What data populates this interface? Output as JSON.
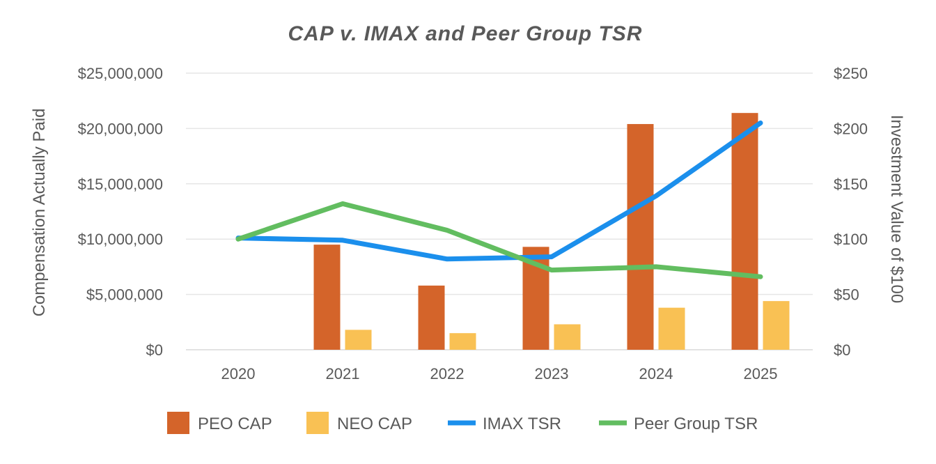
{
  "chart_data": {
    "type": "bar",
    "title": "CAP v. IMAX and Peer Group TSR",
    "xlabel": "",
    "ylabel": "Compensation Actually Paid",
    "y2label": "Investment Value of $100",
    "categories": [
      "2020",
      "2021",
      "2022",
      "2023",
      "2024",
      "2025"
    ],
    "ylim": [
      0,
      25000000
    ],
    "y2lim": [
      0,
      250
    ],
    "y_ticks": [
      {
        "value": 0,
        "label": "$0"
      },
      {
        "value": 5000000,
        "label": "$5,000,000"
      },
      {
        "value": 10000000,
        "label": "$10,000,000"
      },
      {
        "value": 15000000,
        "label": "$15,000,000"
      },
      {
        "value": 20000000,
        "label": "$20,000,000"
      },
      {
        "value": 25000000,
        "label": "$25,000,000"
      }
    ],
    "y2_ticks": [
      {
        "value": 0,
        "label": "$0"
      },
      {
        "value": 50,
        "label": "$50"
      },
      {
        "value": 100,
        "label": "$100"
      },
      {
        "value": 150,
        "label": "$150"
      },
      {
        "value": 200,
        "label": "$200"
      },
      {
        "value": 250,
        "label": "$250"
      }
    ],
    "grid": true,
    "legend_position": "bottom",
    "bar_series": [
      {
        "name": "PEO CAP",
        "color": "#D4642A",
        "values": [
          null,
          9500000,
          5800000,
          9300000,
          20400000,
          21400000
        ]
      },
      {
        "name": "NEO CAP",
        "color": "#F9C154",
        "values": [
          null,
          1800000,
          1500000,
          2300000,
          3800000,
          4400000
        ]
      }
    ],
    "line_series": [
      {
        "name": "IMAX TSR",
        "color": "#1B8FEC",
        "axis": "right",
        "values": [
          101,
          99,
          82,
          84,
          139,
          205
        ]
      },
      {
        "name": "Peer Group TSR",
        "color": "#62BD60",
        "axis": "right",
        "values": [
          100,
          132,
          108,
          72,
          75,
          66
        ]
      }
    ]
  }
}
